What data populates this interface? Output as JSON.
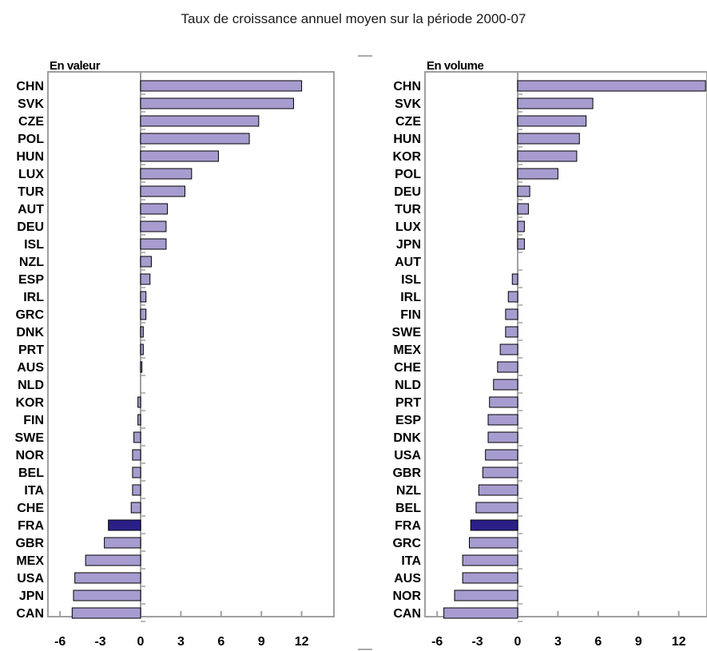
{
  "title": "Taux de croissance annuel moyen sur la période 2000-07",
  "colors": {
    "bar": "#a79ccf",
    "highlight": "#2a1f88",
    "outline": "#000000",
    "frame": "#a0a0a0"
  },
  "chart_data": [
    {
      "type": "bar",
      "orientation": "horizontal",
      "title": "En valeur",
      "categories": [
        "CHN",
        "SVK",
        "CZE",
        "POL",
        "HUN",
        "LUX",
        "TUR",
        "AUT",
        "DEU",
        "ISL",
        "NZL",
        "ESP",
        "IRL",
        "GRC",
        "DNK",
        "PRT",
        "AUS",
        "NLD",
        "KOR",
        "FIN",
        "SWE",
        "NOR",
        "BEL",
        "ITA",
        "CHE",
        "FRA",
        "GBR",
        "MEX",
        "USA",
        "JPN",
        "CAN"
      ],
      "values": [
        12.0,
        11.4,
        8.8,
        8.1,
        5.8,
        3.8,
        3.3,
        2.0,
        1.9,
        1.9,
        0.8,
        0.7,
        0.4,
        0.4,
        0.2,
        0.2,
        0.1,
        0.0,
        -0.2,
        -0.2,
        -0.5,
        -0.6,
        -0.6,
        -0.6,
        -0.7,
        -2.4,
        -2.7,
        -4.1,
        -4.9,
        -5.0,
        -5.1
      ],
      "highlight": "FRA",
      "xlim": [
        -6,
        14
      ],
      "xticks": [
        "-6",
        "-3",
        "0",
        "3",
        "6",
        "9",
        "12"
      ]
    },
    {
      "type": "bar",
      "orientation": "horizontal",
      "title": "En volume",
      "categories": [
        "CHN",
        "SVK",
        "CZE",
        "HUN",
        "KOR",
        "POL",
        "DEU",
        "TUR",
        "LUX",
        "JPN",
        "AUT",
        "ISL",
        "IRL",
        "FIN",
        "SWE",
        "MEX",
        "CHE",
        "NLD",
        "PRT",
        "ESP",
        "DNK",
        "USA",
        "GBR",
        "NZL",
        "BEL",
        "FRA",
        "GRC",
        "ITA",
        "AUS",
        "NOR",
        "CAN"
      ],
      "values": [
        14.0,
        5.6,
        5.1,
        4.6,
        4.4,
        3.0,
        0.9,
        0.8,
        0.5,
        0.5,
        0.0,
        -0.4,
        -0.7,
        -0.9,
        -0.9,
        -1.3,
        -1.5,
        -1.8,
        -2.1,
        -2.2,
        -2.2,
        -2.4,
        -2.6,
        -2.9,
        -3.1,
        -3.5,
        -3.6,
        -4.1,
        -4.1,
        -4.7,
        -5.5
      ],
      "highlight": "FRA",
      "xlim": [
        -6,
        14
      ],
      "xticks": [
        "-6",
        "-3",
        "0",
        "3",
        "6",
        "9",
        "12"
      ]
    }
  ]
}
